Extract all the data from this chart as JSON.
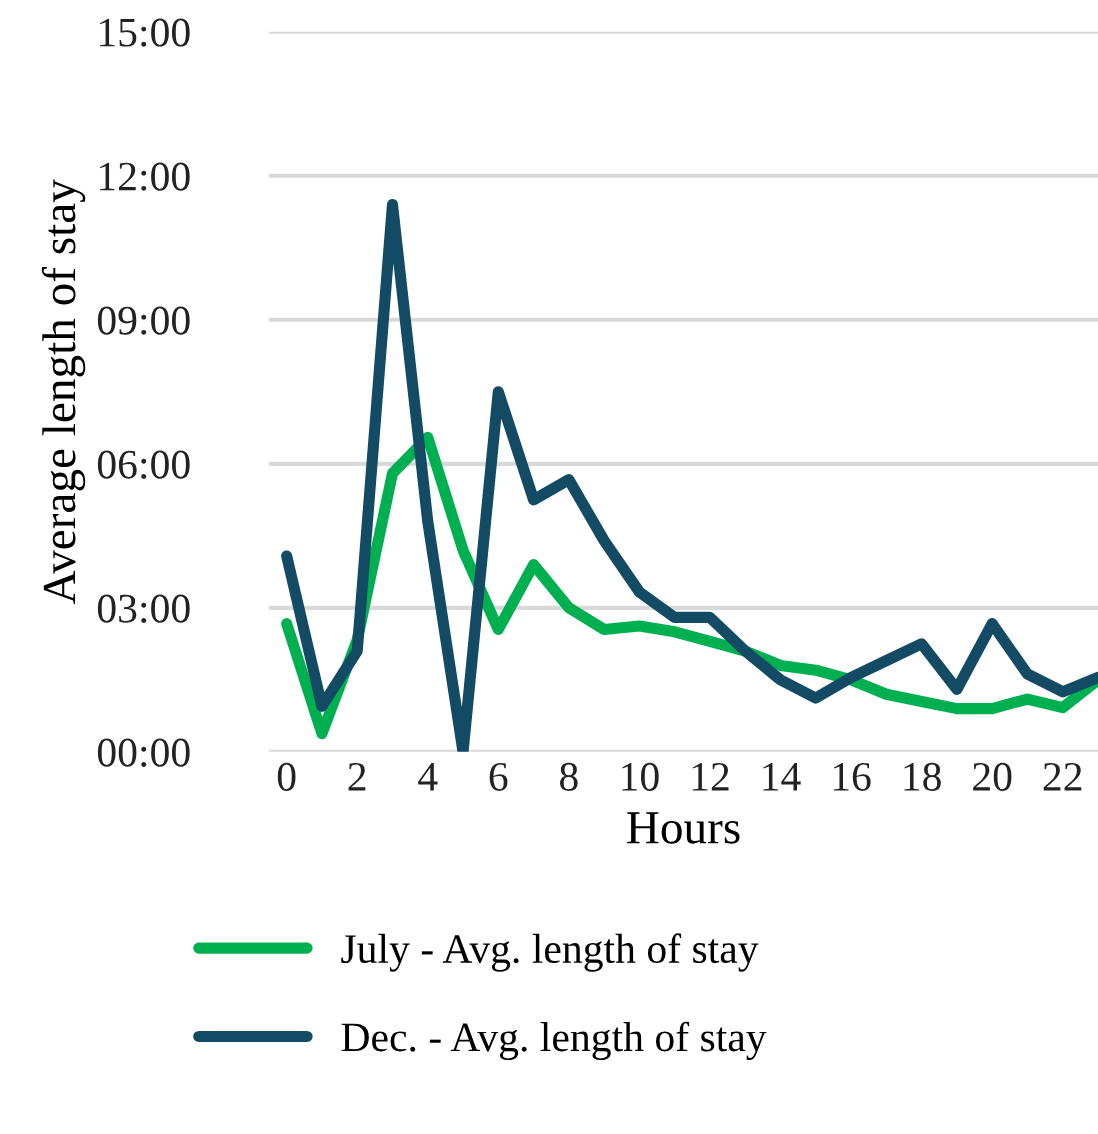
{
  "chart_data": {
    "type": "line",
    "xlabel": "Hours",
    "ylabel": "Average length of stay",
    "x": [
      0,
      1,
      2,
      3,
      4,
      5,
      6,
      7,
      8,
      9,
      10,
      11,
      12,
      13,
      14,
      15,
      16,
      17,
      18,
      19,
      20,
      21,
      22,
      23
    ],
    "series": [
      {
        "name": "July - Avg. length of stay",
        "color": "#00b050",
        "values": [
          2.67,
          0.38,
          2.33,
          5.8,
          6.55,
          4.2,
          2.55,
          3.9,
          3.0,
          2.55,
          2.62,
          2.5,
          2.3,
          2.1,
          1.8,
          1.7,
          1.5,
          1.2,
          1.05,
          0.9,
          0.9,
          1.1,
          0.92,
          1.5
        ]
      },
      {
        "name": "Dec. - Avg. length of stay",
        "color": "#134a64",
        "values": [
          4.08,
          0.95,
          2.1,
          11.4,
          4.8,
          0,
          7.5,
          5.25,
          5.67,
          4.4,
          3.33,
          2.8,
          2.8,
          2.1,
          1.5,
          1.12,
          1.55,
          1.9,
          2.25,
          1.3,
          2.67,
          1.62,
          1.25,
          1.55
        ]
      }
    ],
    "xlim": [
      -0.5,
      23
    ],
    "xticks": [
      0,
      2,
      4,
      6,
      8,
      10,
      12,
      14,
      16,
      18,
      20,
      22
    ],
    "ylim": [
      0,
      15
    ],
    "yticks": [
      {
        "value": 0,
        "label": "00:00"
      },
      {
        "value": 3,
        "label": "03:00"
      },
      {
        "value": 6,
        "label": "06:00"
      },
      {
        "value": 9,
        "label": "09:00"
      },
      {
        "value": 12,
        "label": "12:00"
      },
      {
        "value": 15,
        "label": "15:00"
      }
    ],
    "grid": "y",
    "legend": "bottom",
    "marker": "none",
    "line_style": "solid"
  }
}
